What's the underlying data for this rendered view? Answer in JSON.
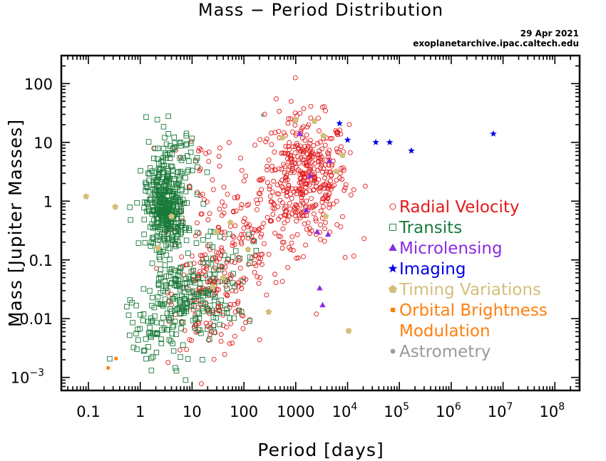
{
  "chart_data": {
    "type": "scatter",
    "title": "Mass − Period Distribution",
    "date": "29 Apr 2021",
    "source": "exoplanetarchive.ipac.caltech.edu",
    "xlabel": "Period [days]",
    "ylabel": "Mass [Jupiter Masses]",
    "x_scale": "log",
    "y_scale": "log",
    "xlim": [
      0.03,
      300000000
    ],
    "ylim": [
      0.0006,
      300
    ],
    "x_ticks": [
      {
        "value": 0.1,
        "label": "0.1"
      },
      {
        "value": 1,
        "label": "1"
      },
      {
        "value": 10,
        "label": "10"
      },
      {
        "value": 100,
        "label": "100"
      },
      {
        "value": 1000,
        "label": "1000"
      },
      {
        "value": 10000,
        "label": "10",
        "exp": "4"
      },
      {
        "value": 100000,
        "label": "10",
        "exp": "5"
      },
      {
        "value": 1000000,
        "label": "10",
        "exp": "6"
      },
      {
        "value": 10000000,
        "label": "10",
        "exp": "7"
      },
      {
        "value": 100000000,
        "label": "10",
        "exp": "8"
      }
    ],
    "y_ticks": [
      {
        "value": 100,
        "label": "100"
      },
      {
        "value": 10,
        "label": "10"
      },
      {
        "value": 1,
        "label": "1"
      },
      {
        "value": 0.1,
        "label": "0.1"
      },
      {
        "value": 0.01,
        "label": "0.01"
      },
      {
        "value": 0.001,
        "label": "10",
        "exp": "−3"
      }
    ],
    "legend_position": "right",
    "series": [
      {
        "name": "Radial Velocity",
        "marker": "open-circle",
        "color": "#e31a1c",
        "clusters": [
          {
            "x": 1500,
            "y": 2.5,
            "sx": 0.42,
            "sy": 0.52,
            "n": 430
          },
          {
            "x": 25,
            "y": 0.025,
            "sx": 0.38,
            "sy": 0.45,
            "n": 170
          },
          {
            "x": 120,
            "y": 0.25,
            "sx": 0.5,
            "sy": 0.55,
            "n": 110
          },
          {
            "x": 15,
            "y": 2,
            "sx": 0.35,
            "sy": 0.55,
            "n": 40
          }
        ],
        "points": [
          [
            420,
            55
          ],
          [
            250,
            30
          ],
          [
            2500,
            0.012
          ],
          [
            9000,
            0.11
          ],
          [
            800,
            0.15
          ]
        ]
      },
      {
        "name": "Transits",
        "marker": "open-square",
        "color": "#1a7a3a",
        "clusters": [
          {
            "x": 3,
            "y": 0.7,
            "sx": 0.18,
            "sy": 0.32,
            "n": 360
          },
          {
            "x": 4,
            "y": 4,
            "sx": 0.25,
            "sy": 0.35,
            "n": 90
          },
          {
            "x": 6,
            "y": 0.02,
            "sx": 0.38,
            "sy": 0.4,
            "n": 180
          },
          {
            "x": 25,
            "y": 0.06,
            "sx": 0.38,
            "sy": 0.45,
            "n": 70
          },
          {
            "x": 1.5,
            "y": 0.005,
            "sx": 0.3,
            "sy": 0.25,
            "n": 40
          }
        ],
        "points": [
          [
            1.3,
            27
          ],
          [
            0.65,
            0.48
          ],
          [
            0.55,
            0.016
          ],
          [
            7.5,
            0.0009
          ],
          [
            5,
            0.0013
          ],
          [
            90,
            0.013
          ]
        ]
      },
      {
        "name": "Microlensing",
        "marker": "triangle",
        "color": "#8a2be2",
        "points": [
          [
            1200,
            14
          ],
          [
            1900,
            2.7
          ],
          [
            4500,
            4.8
          ],
          [
            2600,
            0.3
          ],
          [
            4200,
            0.27
          ],
          [
            1600,
            0.7
          ],
          [
            2900,
            0.033
          ],
          [
            3300,
            0.017
          ]
        ]
      },
      {
        "name": "Imaging",
        "marker": "star",
        "color": "#0000e6",
        "points": [
          [
            7000,
            21
          ],
          [
            10000,
            11
          ],
          [
            35000,
            10
          ],
          [
            65000,
            10
          ],
          [
            170000,
            7.2
          ],
          [
            6500000,
            14
          ]
        ]
      },
      {
        "name": "Timing Variations",
        "marker": "pentagon",
        "color": "#d4bf7a",
        "points": [
          [
            0.09,
            1.2
          ],
          [
            0.33,
            0.8
          ],
          [
            2.2,
            0.16
          ],
          [
            4,
            0.55
          ],
          [
            30,
            0.3
          ],
          [
            55,
            0.43
          ],
          [
            300,
            0.013
          ],
          [
            550,
            12
          ],
          [
            1000,
            24
          ],
          [
            2300,
            23
          ],
          [
            3400,
            13
          ],
          [
            10500,
            0.0062
          ],
          [
            3800,
            0.55
          ],
          [
            8000,
            6
          ],
          [
            6000,
            3.2
          ],
          [
            25,
            0.035
          ],
          [
            40,
            0.05
          ],
          [
            120,
            0.15
          ]
        ]
      },
      {
        "name": "Orbital Brightness\nModulation",
        "marker": "square",
        "color": "#ff7f0e",
        "points": [
          [
            0.24,
            0.00145
          ],
          [
            0.34,
            0.0021
          ]
        ]
      },
      {
        "name": "Astrometry",
        "marker": "dot",
        "color": "#9a9a9a",
        "points": [
          [
            230,
            29
          ]
        ]
      }
    ]
  }
}
